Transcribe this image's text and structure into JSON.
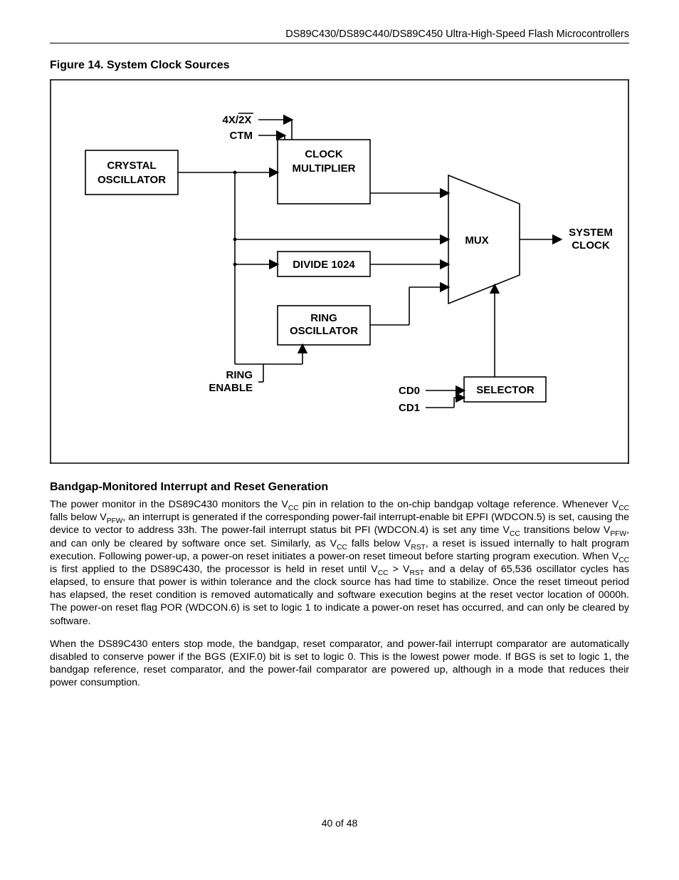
{
  "header": {
    "right": "DS89C430/DS89C440/DS89C450 Ultra-High-Speed Flash Microcontrollers"
  },
  "figure": {
    "title": "Figure 14. System Clock Sources",
    "labels": {
      "crystal1": "CRYSTAL",
      "crystal2": "OSCILLATOR",
      "clockmult1": "CLOCK",
      "clockmult2": "MULTIPLIER",
      "divide": "DIVIDE 1024",
      "ring1": "RING",
      "ring2": "OSCILLATOR",
      "mux": "MUX",
      "selector": "SELECTOR",
      "sysclk1": "SYSTEM",
      "sysclk2": "CLOCK",
      "sig_4x": "4X/",
      "sig_2x": "2X",
      "ctm": "CTM",
      "ringen1": "RING",
      "ringen2": "ENABLE",
      "cd0": "CD0",
      "cd1": "CD1"
    },
    "style": {
      "stroke": "#000000",
      "stroke_width": 1.6,
      "background": "#ffffff",
      "font_size": 15,
      "font_weight": "bold"
    }
  },
  "section": {
    "title": "Bandgap-Monitored Interrupt and Reset Generation",
    "para1_parts": [
      "The power monitor in the DS89C430 monitors the V",
      " pin in relation to the on-chip bandgap voltage reference. Whenever V",
      " falls below V",
      ", an interrupt is generated if the corresponding power-fail interrupt-enable bit EPFI (WDCON.5) is set, causing the device to vector to address 33h. The power-fail interrupt status bit PFI (WDCON.4) is set any time V",
      " transitions below V",
      ", and can only be cleared by software once set. Similarly, as V",
      " falls below V",
      ", a reset is issued internally to halt program execution. Following power-up, a power-on reset initiates a power-on reset timeout before starting program execution. When V",
      " is first applied to the DS89C430, the processor is held in reset until V",
      " > V",
      " and a delay of 65,536 oscillator cycles has elapsed, to ensure that power is within tolerance and the clock source has had time to stabilize. Once the reset timeout period has elapsed, the reset condition is removed automatically and software execution begins at the reset vector location of 0000h. The power-on reset flag POR (WDCON.6) is set to logic 1 to indicate a power-on reset has occurred, and can only be cleared by software."
    ],
    "para1_subs": [
      "CC",
      "CC",
      "PFW",
      "CC",
      "PFW",
      "CC",
      "RST",
      "CC",
      "CC",
      "RST"
    ],
    "para2": "When the DS89C430 enters stop mode, the bandgap, reset comparator, and power-fail interrupt comparator are automatically disabled to conserve power if the BGS (EXIF.0) bit is set to logic 0. This is the lowest power mode. If BGS is set to logic 1, the bandgap reference, reset comparator, and the power-fail comparator are powered up, although in a mode that reduces their power consumption."
  },
  "footer": {
    "text": "40 of 48"
  }
}
